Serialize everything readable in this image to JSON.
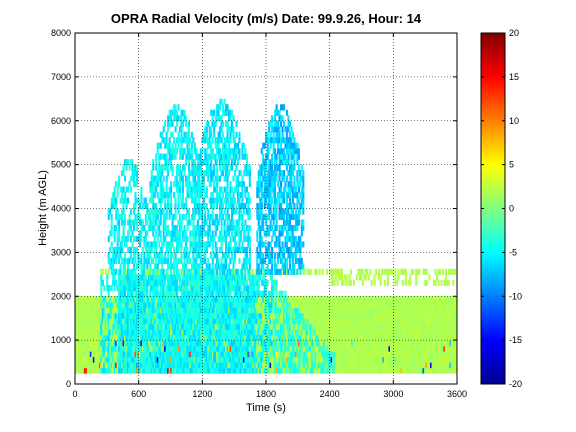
{
  "chart_data": {
    "type": "heatmap",
    "title": "OPRA Radial Velocity (m/s)  Date: 99.9.26, Hour: 14",
    "xlabel": "Time (s)",
    "ylabel": "Height (m AGL)",
    "xlim": [
      0,
      3600
    ],
    "ylim": [
      0,
      8000
    ],
    "xticks": [
      "0",
      "600",
      "1200",
      "1800",
      "2400",
      "3000",
      "3600"
    ],
    "yticks": [
      "0",
      "1000",
      "2000",
      "3000",
      "4000",
      "5000",
      "6000",
      "7000",
      "8000"
    ],
    "grid": true,
    "colorbar": {
      "range": [
        -20,
        20
      ],
      "ticks": [
        "20",
        "15",
        "10",
        "5",
        "0",
        "-5",
        "-10",
        "-15",
        "-20"
      ],
      "colormap": "jet"
    },
    "regions": [
      {
        "x": [
          0,
          3600
        ],
        "y": [
          250,
          2000
        ],
        "value": 1.5,
        "desc": "near-surface layer, light green (~+1 m/s)"
      },
      {
        "x": [
          230,
          1850
        ],
        "y": [
          250,
          2400
        ],
        "value": -4,
        "desc": "core of downdraft region"
      },
      {
        "x": [
          230,
          3600
        ],
        "y": [
          2400,
          2600
        ],
        "value": 1.5,
        "desc": "echo layer near 2.5 km"
      },
      {
        "x": [
          300,
          700
        ],
        "y": [
          2400,
          5100
        ],
        "value": -4,
        "desc": "plume 1"
      },
      {
        "x": [
          700,
          1200
        ],
        "y": [
          2400,
          6300
        ],
        "value": -3.5,
        "desc": "plume 2"
      },
      {
        "x": [
          1100,
          1650
        ],
        "y": [
          2400,
          6400
        ],
        "value": -4,
        "desc": "plume 3"
      },
      {
        "x": [
          1700,
          2150
        ],
        "y": [
          2400,
          6300
        ],
        "value": -6,
        "desc": "plume 4"
      },
      {
        "x": [
          1750,
          2450
        ],
        "y": [
          250,
          2400
        ],
        "value": -3,
        "desc": "decaying tail"
      }
    ]
  }
}
